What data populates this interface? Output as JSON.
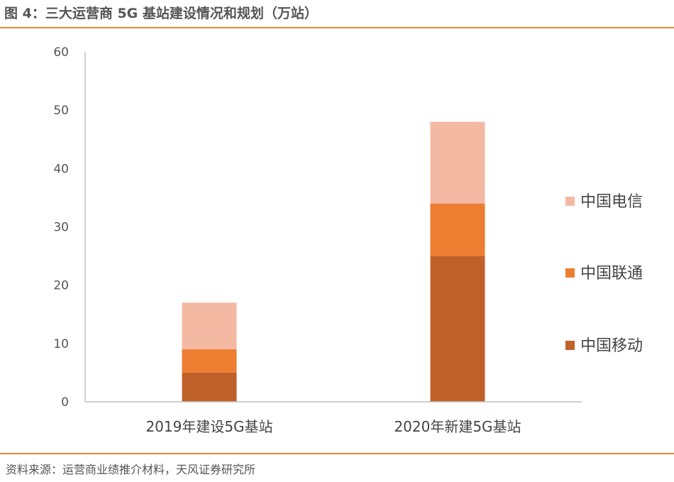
{
  "header": {
    "title": "图 4：三大运营商 5G 基站建设情况和规划（万站）"
  },
  "footer": {
    "source": "资料来源：运营商业绩推介材料，天风证券研究所"
  },
  "chart_data": {
    "type": "bar",
    "stacked": true,
    "title": "图 4：三大运营商 5G 基站建设情况和规划（万站）",
    "categories": [
      "2019年建设5G基站",
      "2020年新建5G基站"
    ],
    "series": [
      {
        "name": "中国移动",
        "values": [
          5,
          25
        ],
        "color": "#c0612a"
      },
      {
        "name": "中国联通",
        "values": [
          4,
          9
        ],
        "color": "#ed7d31"
      },
      {
        "name": "中国电信",
        "values": [
          8,
          14
        ],
        "color": "#f4b9a3"
      }
    ],
    "ylim": [
      0,
      60
    ],
    "yticks": [
      "0",
      "10",
      "20",
      "30",
      "40",
      "50",
      "60"
    ],
    "grid": false,
    "legend": "right",
    "axis_color": "#bfbfbf"
  }
}
